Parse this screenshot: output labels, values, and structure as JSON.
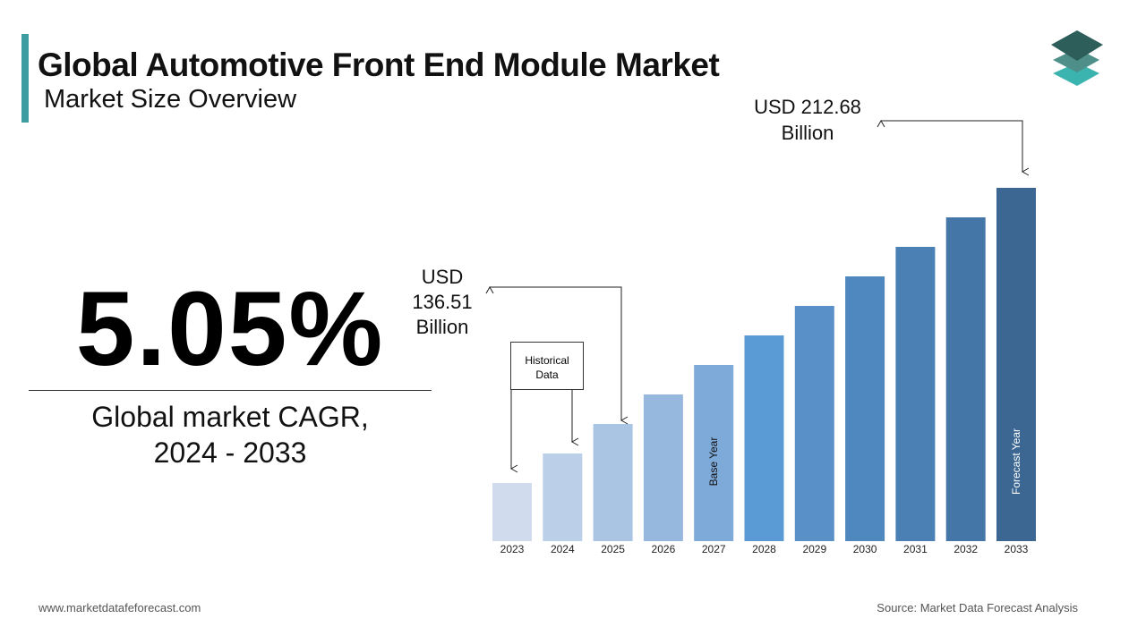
{
  "header": {
    "title": "Global Automotive Front End Module Market",
    "subtitle": "Market Size Overview"
  },
  "kpi": {
    "value": "5.05%",
    "label_line1": "Global market CAGR,",
    "label_line2": "2024 - 2033"
  },
  "footer": {
    "website": "www.marketdatafeforecast.com",
    "source": "Source: Market Data Forecast Analysis"
  },
  "logo": {
    "colors": [
      "#2d5e59",
      "#4f8f8a",
      "#3bb3ae"
    ]
  },
  "chart_data": {
    "type": "bar",
    "categories": [
      "2023",
      "2024",
      "2025",
      "2026",
      "2027",
      "2028",
      "2029",
      "2030",
      "2031",
      "2032",
      "2033"
    ],
    "values": [
      null,
      null,
      136.51,
      null,
      null,
      null,
      null,
      null,
      null,
      null,
      212.68
    ],
    "unit": "USD Billion",
    "colors": [
      "#d0dced",
      "#bccfe8",
      "#aac4e3",
      "#96b8df",
      "#7eaad9",
      "#5b9bd5",
      "#5890c7",
      "#4f88be",
      "#4a80b4",
      "#4476a8",
      "#3c6792"
    ],
    "annotations": {
      "start": {
        "line1": "USD",
        "line2": "136.51",
        "line3": "Billion"
      },
      "end": {
        "line1": "USD 212.68",
        "line2": "Billion"
      },
      "historical": {
        "line1": "Historical",
        "line2": "Data"
      },
      "base_year": "Base Year",
      "forecast_year": "Forecast Year"
    },
    "grid": false
  }
}
